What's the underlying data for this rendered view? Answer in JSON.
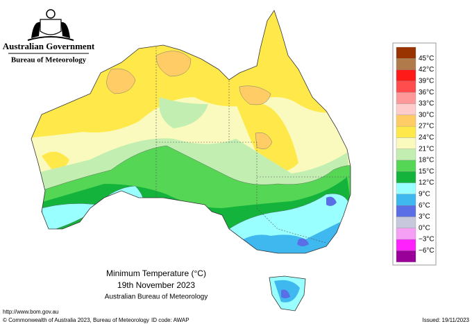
{
  "header": {
    "government": "Australian Government",
    "bureau": "Bureau of Meteorology"
  },
  "map": {
    "title": "Minimum Temperature (°C)",
    "date": "19th November 2023",
    "source": "Australian Bureau of Meteorology"
  },
  "legend": {
    "labels": [
      "45°C",
      "42°C",
      "39°C",
      "36°C",
      "33°C",
      "30°C",
      "27°C",
      "24°C",
      "21°C",
      "18°C",
      "15°C",
      "12°C",
      "9°C",
      "6°C",
      "3°C",
      "0°C",
      "−3°C",
      "−6°C"
    ],
    "colors": [
      "#993300",
      "#b07a4a",
      "#ff1a1a",
      "#ff4d4d",
      "#ff9999",
      "#ffcccc",
      "#ffcc66",
      "#ffe94a",
      "#fafabe",
      "#c2efb1",
      "#55d655",
      "#14b43c",
      "#99ffff",
      "#3fb8f0",
      "#5a6ee6",
      "#c8c8dc",
      "#f59ff5",
      "#ff22ff",
      "#990099"
    ]
  },
  "footer": {
    "url": "http://www.bom.gov.au",
    "copyright": "© Commonwealth of Australia 2023, Bureau of Meteorology",
    "id_code": "ID code: AWAP",
    "issued": "Issued: 19/11/2023"
  }
}
